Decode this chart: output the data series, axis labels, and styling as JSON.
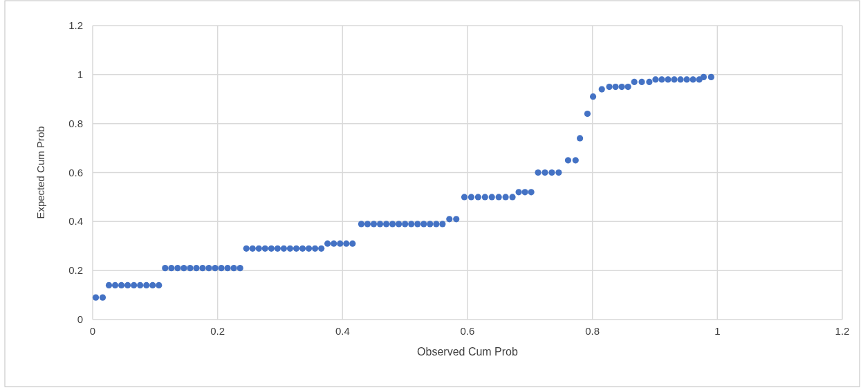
{
  "chart_data": {
    "type": "scatter",
    "xlabel": "Observed Cum Prob",
    "ylabel": "Expected Cum Prob",
    "xlim": [
      0,
      1.2
    ],
    "xticks": [
      0,
      0.2,
      0.4,
      0.6,
      0.8,
      1,
      1.2
    ],
    "ylim": [
      0,
      1.2
    ],
    "yticks": [
      0,
      0.2,
      0.4,
      0.6,
      0.8,
      1,
      1.2
    ],
    "grid": true,
    "marker": "circle",
    "series": [
      {
        "color": "#4472c4",
        "x": [
          0.005,
          0.016,
          0.026,
          0.036,
          0.046,
          0.056,
          0.066,
          0.076,
          0.086,
          0.096,
          0.106,
          0.116,
          0.126,
          0.136,
          0.146,
          0.156,
          0.166,
          0.176,
          0.186,
          0.196,
          0.206,
          0.216,
          0.226,
          0.236,
          0.246,
          0.256,
          0.266,
          0.276,
          0.286,
          0.296,
          0.306,
          0.316,
          0.326,
          0.336,
          0.346,
          0.356,
          0.366,
          0.376,
          0.386,
          0.396,
          0.406,
          0.416,
          0.43,
          0.44,
          0.45,
          0.46,
          0.47,
          0.48,
          0.49,
          0.5,
          0.51,
          0.52,
          0.53,
          0.54,
          0.55,
          0.56,
          0.571,
          0.582,
          0.595,
          0.606,
          0.617,
          0.628,
          0.639,
          0.65,
          0.661,
          0.672,
          0.682,
          0.692,
          0.702,
          0.713,
          0.724,
          0.735,
          0.746,
          0.761,
          0.773,
          0.78,
          0.792,
          0.801,
          0.815,
          0.827,
          0.837,
          0.847,
          0.857,
          0.867,
          0.879,
          0.891,
          0.901,
          0.911,
          0.921,
          0.931,
          0.941,
          0.951,
          0.961,
          0.971,
          0.978,
          0.99
        ],
        "values": [
          0.09,
          0.09,
          0.14,
          0.14,
          0.14,
          0.14,
          0.14,
          0.14,
          0.14,
          0.14,
          0.14,
          0.21,
          0.21,
          0.21,
          0.21,
          0.21,
          0.21,
          0.21,
          0.21,
          0.21,
          0.21,
          0.21,
          0.21,
          0.21,
          0.29,
          0.29,
          0.29,
          0.29,
          0.29,
          0.29,
          0.29,
          0.29,
          0.29,
          0.29,
          0.29,
          0.29,
          0.29,
          0.31,
          0.31,
          0.31,
          0.31,
          0.31,
          0.39,
          0.39,
          0.39,
          0.39,
          0.39,
          0.39,
          0.39,
          0.39,
          0.39,
          0.39,
          0.39,
          0.39,
          0.39,
          0.39,
          0.41,
          0.41,
          0.5,
          0.5,
          0.5,
          0.5,
          0.5,
          0.5,
          0.5,
          0.5,
          0.52,
          0.52,
          0.52,
          0.6,
          0.6,
          0.6,
          0.6,
          0.65,
          0.65,
          0.74,
          0.84,
          0.91,
          0.94,
          0.95,
          0.95,
          0.95,
          0.95,
          0.97,
          0.97,
          0.97,
          0.98,
          0.98,
          0.98,
          0.98,
          0.98,
          0.98,
          0.98,
          0.98,
          0.99,
          0.99
        ]
      }
    ]
  }
}
